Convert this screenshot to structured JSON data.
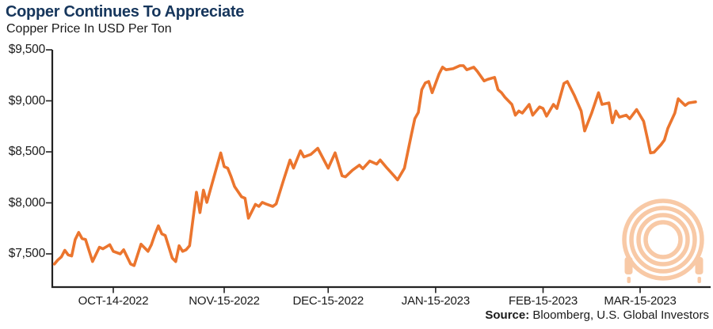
{
  "header": {
    "title": "Copper Continues To Appreciate",
    "subtitle": "Copper Price In USD Per Ton"
  },
  "footer": {
    "source_label": "Source:",
    "source_text": " Bloomberg, U.S. Global Investors"
  },
  "watermark_icon": "coiled-copper-cable",
  "colors": {
    "line": "#EB752E",
    "title": "#16365C",
    "text": "#1A1A1A",
    "axis": "#222222",
    "watermark": "#F8C9A6"
  },
  "chart_data": {
    "type": "line",
    "title": "Copper Continues To Appreciate",
    "subtitle": "Copper Price In USD Per Ton",
    "xlabel": "",
    "ylabel": "Copper Price In USD Per Ton",
    "grid": false,
    "legend": false,
    "y_axis": {
      "ticks": [
        {
          "value": 9500,
          "label": "$9,500"
        },
        {
          "value": 9000,
          "label": "$9,000"
        },
        {
          "value": 8500,
          "label": "$8,500"
        },
        {
          "value": 8000,
          "label": "$8,000"
        },
        {
          "value": 7500,
          "label": "$7,500"
        }
      ],
      "range": [
        7175,
        9500
      ]
    },
    "x_axis": {
      "type": "date",
      "range": [
        "2022-09-27",
        "2023-03-31"
      ],
      "ticks": [
        {
          "date": "2022-10-14",
          "label": "OCT-14-2022"
        },
        {
          "date": "2022-11-15",
          "label": "NOV-15-2022"
        },
        {
          "date": "2022-12-15",
          "label": "DEC-15-2022"
        },
        {
          "date": "2023-01-15",
          "label": "JAN-15-2023"
        },
        {
          "date": "2023-02-15",
          "label": "FEB-15-2023"
        },
        {
          "date": "2023-03-15",
          "label": "MAR-15-2023"
        }
      ]
    },
    "series": [
      {
        "name": "Copper price (USD per ton)",
        "points": [
          [
            "2022-09-27",
            7400
          ],
          [
            "2022-09-28",
            7440
          ],
          [
            "2022-09-29",
            7470
          ],
          [
            "2022-09-30",
            7535
          ],
          [
            "2022-10-01",
            7490
          ],
          [
            "2022-10-02",
            7480
          ],
          [
            "2022-10-03",
            7640
          ],
          [
            "2022-10-04",
            7710
          ],
          [
            "2022-10-05",
            7650
          ],
          [
            "2022-10-06",
            7640
          ],
          [
            "2022-10-08",
            7425
          ],
          [
            "2022-10-10",
            7565
          ],
          [
            "2022-10-11",
            7550
          ],
          [
            "2022-10-12",
            7570
          ],
          [
            "2022-10-13",
            7590
          ],
          [
            "2022-10-14",
            7525
          ],
          [
            "2022-10-16",
            7500
          ],
          [
            "2022-10-17",
            7540
          ],
          [
            "2022-10-19",
            7400
          ],
          [
            "2022-10-20",
            7385
          ],
          [
            "2022-10-22",
            7595
          ],
          [
            "2022-10-24",
            7525
          ],
          [
            "2022-10-25",
            7590
          ],
          [
            "2022-10-26",
            7690
          ],
          [
            "2022-10-27",
            7775
          ],
          [
            "2022-10-28",
            7695
          ],
          [
            "2022-10-29",
            7680
          ],
          [
            "2022-10-31",
            7460
          ],
          [
            "2022-11-01",
            7425
          ],
          [
            "2022-11-02",
            7580
          ],
          [
            "2022-11-03",
            7525
          ],
          [
            "2022-11-04",
            7540
          ],
          [
            "2022-11-05",
            7580
          ],
          [
            "2022-11-07",
            8105
          ],
          [
            "2022-11-08",
            7905
          ],
          [
            "2022-11-09",
            8125
          ],
          [
            "2022-11-10",
            8005
          ],
          [
            "2022-11-12",
            8250
          ],
          [
            "2022-11-14",
            8490
          ],
          [
            "2022-11-15",
            8355
          ],
          [
            "2022-11-16",
            8340
          ],
          [
            "2022-11-17",
            8255
          ],
          [
            "2022-11-18",
            8160
          ],
          [
            "2022-11-20",
            8060
          ],
          [
            "2022-11-21",
            8045
          ],
          [
            "2022-11-22",
            7850
          ],
          [
            "2022-11-24",
            7985
          ],
          [
            "2022-11-25",
            7965
          ],
          [
            "2022-11-26",
            8005
          ],
          [
            "2022-11-27",
            7990
          ],
          [
            "2022-11-29",
            7965
          ],
          [
            "2022-11-30",
            7990
          ],
          [
            "2022-12-02",
            8210
          ],
          [
            "2022-12-04",
            8420
          ],
          [
            "2022-12-05",
            8340
          ],
          [
            "2022-12-07",
            8510
          ],
          [
            "2022-12-08",
            8450
          ],
          [
            "2022-12-10",
            8475
          ],
          [
            "2022-12-12",
            8535
          ],
          [
            "2022-12-15",
            8340
          ],
          [
            "2022-12-17",
            8490
          ],
          [
            "2022-12-19",
            8265
          ],
          [
            "2022-12-20",
            8255
          ],
          [
            "2022-12-22",
            8320
          ],
          [
            "2022-12-24",
            8370
          ],
          [
            "2022-12-25",
            8335
          ],
          [
            "2022-12-27",
            8410
          ],
          [
            "2022-12-29",
            8380
          ],
          [
            "2022-12-30",
            8420
          ],
          [
            "2023-01-01",
            8340
          ],
          [
            "2023-01-03",
            8265
          ],
          [
            "2023-01-04",
            8225
          ],
          [
            "2023-01-06",
            8340
          ],
          [
            "2023-01-08",
            8670
          ],
          [
            "2023-01-09",
            8825
          ],
          [
            "2023-01-10",
            8885
          ],
          [
            "2023-01-11",
            9110
          ],
          [
            "2023-01-12",
            9175
          ],
          [
            "2023-01-13",
            9190
          ],
          [
            "2023-01-14",
            9080
          ],
          [
            "2023-01-16",
            9265
          ],
          [
            "2023-01-17",
            9330
          ],
          [
            "2023-01-18",
            9305
          ],
          [
            "2023-01-20",
            9315
          ],
          [
            "2023-01-22",
            9345
          ],
          [
            "2023-01-23",
            9345
          ],
          [
            "2023-01-24",
            9305
          ],
          [
            "2023-01-26",
            9330
          ],
          [
            "2023-01-27",
            9290
          ],
          [
            "2023-01-29",
            9195
          ],
          [
            "2023-01-30",
            9210
          ],
          [
            "2023-02-01",
            9230
          ],
          [
            "2023-02-02",
            9110
          ],
          [
            "2023-02-03",
            9080
          ],
          [
            "2023-02-04",
            9035
          ],
          [
            "2023-02-06",
            8965
          ],
          [
            "2023-02-07",
            8860
          ],
          [
            "2023-02-08",
            8900
          ],
          [
            "2023-02-09",
            8880
          ],
          [
            "2023-02-11",
            8965
          ],
          [
            "2023-02-12",
            8860
          ],
          [
            "2023-02-14",
            8940
          ],
          [
            "2023-02-15",
            8925
          ],
          [
            "2023-02-16",
            8850
          ],
          [
            "2023-02-18",
            8965
          ],
          [
            "2023-02-19",
            8925
          ],
          [
            "2023-02-21",
            9170
          ],
          [
            "2023-02-22",
            9190
          ],
          [
            "2023-02-24",
            9055
          ],
          [
            "2023-02-26",
            8900
          ],
          [
            "2023-02-27",
            8705
          ],
          [
            "2023-03-01",
            8880
          ],
          [
            "2023-03-03",
            9080
          ],
          [
            "2023-03-04",
            8965
          ],
          [
            "2023-03-06",
            8980
          ],
          [
            "2023-03-07",
            8785
          ],
          [
            "2023-03-08",
            8900
          ],
          [
            "2023-03-09",
            8840
          ],
          [
            "2023-03-11",
            8860
          ],
          [
            "2023-03-12",
            8825
          ],
          [
            "2023-03-14",
            8915
          ],
          [
            "2023-03-16",
            8800
          ],
          [
            "2023-03-17",
            8645
          ],
          [
            "2023-03-18",
            8490
          ],
          [
            "2023-03-19",
            8495
          ],
          [
            "2023-03-21",
            8570
          ],
          [
            "2023-03-22",
            8615
          ],
          [
            "2023-03-23",
            8730
          ],
          [
            "2023-03-25",
            8880
          ],
          [
            "2023-03-26",
            9020
          ],
          [
            "2023-03-28",
            8955
          ],
          [
            "2023-03-29",
            8980
          ],
          [
            "2023-03-31",
            8990
          ]
        ]
      }
    ]
  }
}
